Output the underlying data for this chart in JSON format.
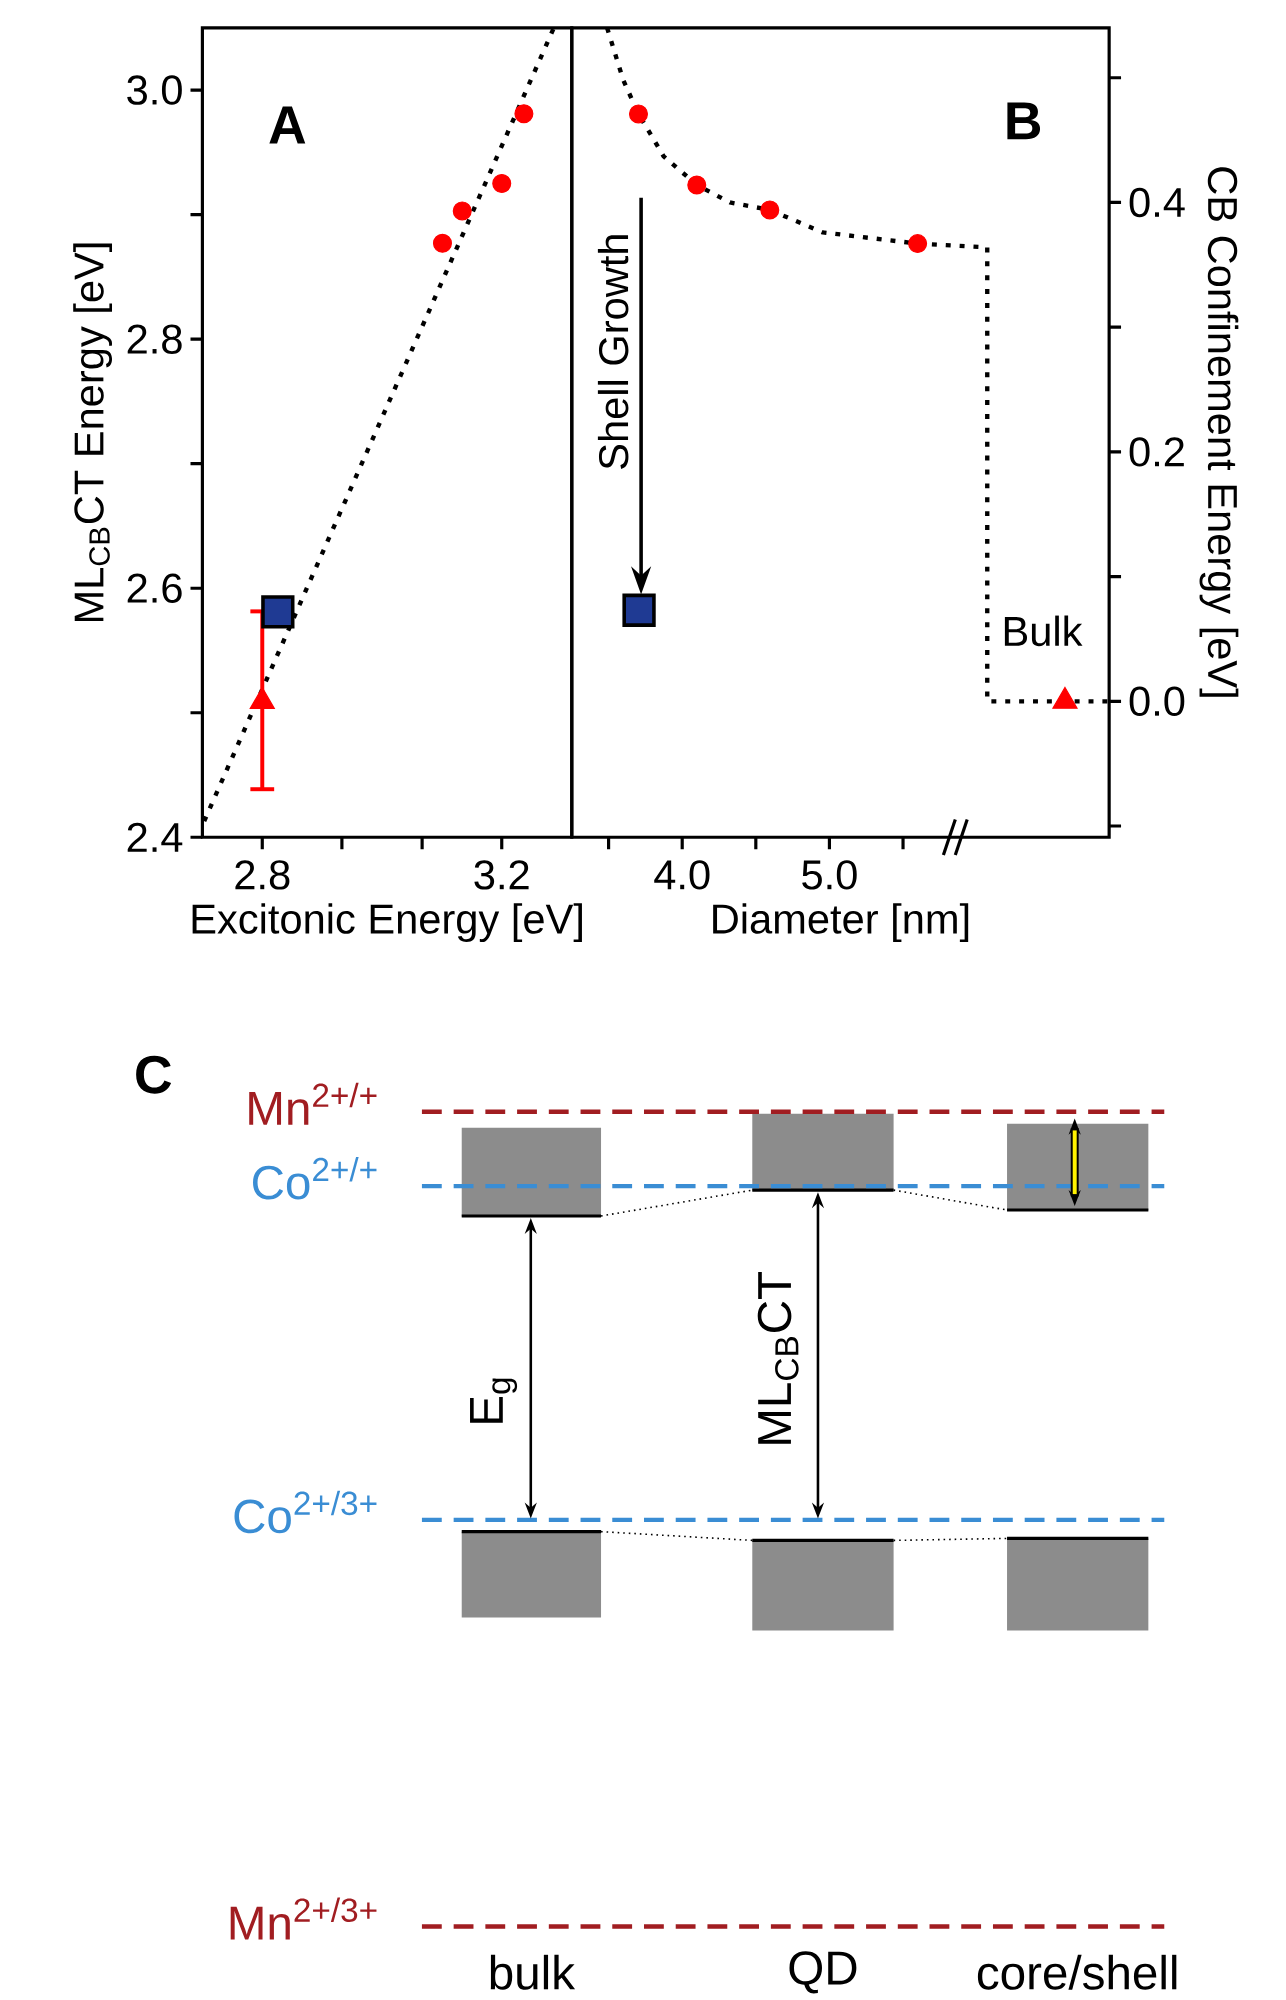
{
  "chart_data": [
    {
      "type": "scatter",
      "xlabel": "Excitonic Energy [eV]",
      "ylabel": "ML$_{CB}$CT  Energy [eV]",
      "xlim": [
        2.7,
        3.317
      ],
      "xticks": [
        2.8,
        {
          "value": 2.933,
          "label": null
        },
        {
          "value": 3.067,
          "label": null
        },
        3.2
      ],
      "ylim": [
        2.4,
        3.05
      ],
      "yticks": [
        2.4,
        {
          "value": 2.5,
          "label": null
        },
        2.6,
        {
          "value": 2.7,
          "label": null
        },
        2.8,
        {
          "value": 2.9,
          "label": null
        },
        {
          "value": 3,
          "label": "3.0"
        }
      ],
      "annotations": [
        "A"
      ],
      "series": [
        {
          "type": "line",
          "x": [
            2.703,
            3.287
          ],
          "values": [
            2.413,
            3.05
          ],
          "color": "#000000",
          "line_style": "dotted",
          "marker": "none"
        },
        {
          "type": "scatter",
          "x": [
            3.101,
            3.134,
            3.2,
            3.237
          ],
          "values": [
            2.877,
            2.903,
            2.925,
            2.981
          ],
          "color": "#ff0000",
          "marker": "circle"
        },
        {
          "type": "scatter",
          "x": [
            2.826
          ],
          "values": [
            2.581
          ],
          "color": "#1f3a93",
          "marker": "square"
        },
        {
          "type": "scatter",
          "x": [
            2.8
          ],
          "values": [
            2.509
          ],
          "errors": [
            [
              2.437,
              2.583
            ]
          ],
          "color": "#ff0000",
          "marker": "triangle"
        }
      ]
    },
    {
      "type": "scatter",
      "xlabel": "Diameter [nm]",
      "y2label": "CB Confinement Energy [eV]",
      "xlim": [
        3.25,
        6.9
      ],
      "xticks": [
        {
          "value": 3.5,
          "label": null
        },
        {
          "value": 4,
          "label": "4.0"
        },
        {
          "value": 4.5,
          "label": null
        },
        {
          "value": 5,
          "label": "5.0"
        },
        {
          "value": 5.5,
          "label": null
        }
      ],
      "y2lim": [
        -0.109,
        0.54
      ],
      "y2ticks": [
        {
          "value": -0.1,
          "label": null
        },
        {
          "value": 0,
          "label": "0.0"
        },
        {
          "value": 0.1,
          "label": null
        },
        {
          "value": 0.2,
          "label": "0.2"
        },
        {
          "value": 0.3,
          "label": null
        },
        {
          "value": 0.4,
          "label": "0.4"
        },
        {
          "value": 0.5,
          "label": null
        }
      ],
      "annotations": [
        "B",
        "Shell Growth",
        "Bulk"
      ],
      "series": [
        {
          "type": "line",
          "axis": "y2",
          "x": [
            3.49,
            3.6,
            3.703,
            3.874,
            4.099,
            4.324,
            4.595,
            4.955,
            5.599,
            6.072,
            6.072,
            6.9
          ],
          "values": [
            0.54,
            0.498,
            0.471,
            0.437,
            0.414,
            0.4,
            0.394,
            0.376,
            0.367,
            0.364,
            0.0,
            0.0
          ],
          "color": "#000000",
          "line_style": "dotted",
          "marker": "none"
        },
        {
          "type": "scatter",
          "axis": "y2",
          "x": [
            3.703,
            4.099,
            4.595,
            5.599
          ],
          "values": [
            0.471,
            0.414,
            0.394,
            0.367
          ],
          "color": "#ff0000",
          "marker": "circle"
        },
        {
          "type": "scatter",
          "axis": "y2",
          "x": [
            3.707
          ],
          "values": [
            0.073
          ],
          "color": "#1f3a93",
          "marker": "square"
        },
        {
          "type": "scatter",
          "axis": "y2",
          "x": [
            6.6
          ],
          "values": [
            0.0
          ],
          "color": "#ff0000",
          "marker": "triangle"
        }
      ]
    },
    {
      "type": "other",
      "title": "C",
      "categories": [
        "bulk",
        "QD",
        "core/shell"
      ],
      "annotations": [
        "Mn$^{2+/+}$",
        "Co$^{2+/+}$",
        "Co$^{2+/3+}$",
        "Mn$^{2+/3+}$",
        "E$_{g}$",
        "ML$_{CB}$CT"
      ],
      "colors": [
        "#a11d21",
        "#3a8dd4",
        "#3a8dd4",
        "#a11d21"
      ]
    }
  ]
}
